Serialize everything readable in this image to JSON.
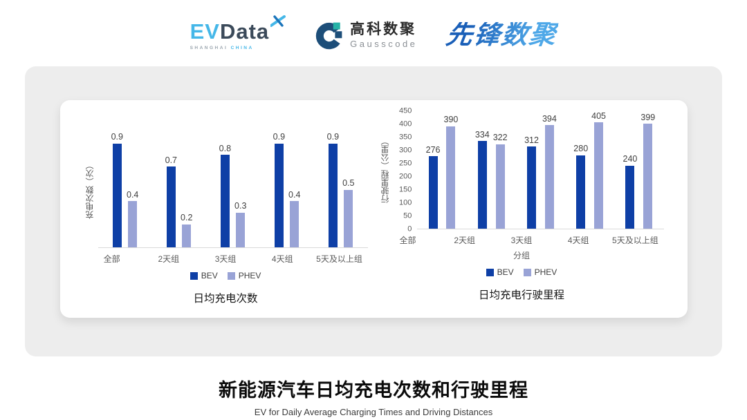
{
  "colors": {
    "bev": "#0E3FA6",
    "phev": "#99A3D6",
    "panel_bg": "#EDEDED",
    "axis_line": "#D9D9D9",
    "text_muted": "#595959",
    "label_dark": "#3F3F3F",
    "ev_blue": "#45B7E8",
    "ev_dark": "#3B4A5A",
    "gauss_navy": "#1D4E79",
    "gauss_teal": "#26B3A7",
    "xf_blue1": "#1A5FB8",
    "xf_blue2": "#4FA8E8"
  },
  "header": {
    "evdata": {
      "ev": "EV",
      "data": "Data",
      "sub_left": "SHANGHAI",
      "sub_right": "CHINA"
    },
    "gausscode": {
      "cn": "高科数聚",
      "en": "Gausscode"
    },
    "xianfeng": {
      "text": "先锋数聚"
    }
  },
  "chart_data": [
    {
      "type": "bar",
      "title": "日均充电次数",
      "ylabel": "充电次数（次）",
      "xlabel": "",
      "categories": [
        "全部",
        "2天组",
        "3天组",
        "4天组",
        "5天及以上组"
      ],
      "series": [
        {
          "name": "BEV",
          "color": "#0E3FA6",
          "values": [
            0.9,
            0.7,
            0.8,
            0.9,
            0.9
          ],
          "labels": [
            "0.9",
            "0.7",
            "0.8",
            "0.9",
            "0.9"
          ]
        },
        {
          "name": "PHEV",
          "color": "#99A3D6",
          "values": [
            0.4,
            0.2,
            0.3,
            0.4,
            0.5
          ],
          "labels": [
            "0.4",
            "0.2",
            "0.3",
            "0.4",
            "0.5"
          ]
        }
      ],
      "ylim": [
        0,
        1.0
      ],
      "yticks": null,
      "grid": false,
      "legend_position": "bottom",
      "value_labels": true
    },
    {
      "type": "bar",
      "title": "日均充电行驶里程",
      "ylabel": "行驶里程（公里）",
      "xlabel": "分组",
      "categories": [
        "全部",
        "2天组",
        "3天组",
        "4天组",
        "5天及以上组"
      ],
      "series": [
        {
          "name": "BEV",
          "color": "#0E3FA6",
          "values": [
            276,
            334,
            312,
            280,
            240
          ],
          "labels": [
            "276",
            "334",
            "312",
            "280",
            "240"
          ]
        },
        {
          "name": "PHEV",
          "color": "#99A3D6",
          "values": [
            390,
            322,
            394,
            405,
            399
          ],
          "labels": [
            "390",
            "322",
            "394",
            "405",
            "399"
          ]
        }
      ],
      "ylim": [
        0,
        450
      ],
      "yticks": [
        0,
        50,
        100,
        150,
        200,
        250,
        300,
        350,
        400,
        450
      ],
      "grid": false,
      "legend_position": "bottom",
      "value_labels": true
    }
  ],
  "footer": {
    "title": "新能源汽车日均充电次数和行驶里程",
    "subtitle": "EV for Daily Average Charging Times and Driving Distances"
  }
}
